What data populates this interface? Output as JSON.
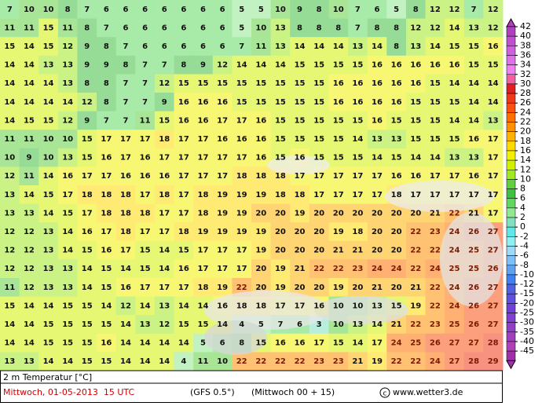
{
  "map": {
    "rows": [
      [
        7,
        10,
        10,
        8,
        7,
        6,
        6,
        6,
        6,
        6,
        6,
        6,
        5,
        5,
        10,
        9,
        8,
        10,
        7,
        6,
        5,
        8,
        12,
        12,
        7,
        12
      ],
      [
        11,
        11,
        15,
        11,
        8,
        7,
        6,
        6,
        6,
        6,
        6,
        6,
        5,
        10,
        13,
        8,
        8,
        8,
        7,
        8,
        8,
        12,
        12,
        14,
        13,
        12
      ],
      [
        15,
        14,
        15,
        12,
        9,
        8,
        7,
        6,
        6,
        6,
        6,
        6,
        7,
        11,
        13,
        14,
        14,
        14,
        13,
        14,
        8,
        13,
        14,
        15,
        15,
        16
      ],
      [
        14,
        14,
        13,
        13,
        9,
        9,
        8,
        7,
        7,
        8,
        9,
        12,
        14,
        14,
        14,
        15,
        15,
        15,
        15,
        16,
        16,
        16,
        16,
        16,
        15,
        15
      ],
      [
        14,
        14,
        14,
        13,
        8,
        8,
        7,
        7,
        12,
        15,
        15,
        15,
        15,
        15,
        15,
        15,
        15,
        16,
        16,
        16,
        16,
        16,
        15,
        14,
        14,
        14
      ],
      [
        14,
        14,
        14,
        14,
        12,
        8,
        7,
        7,
        9,
        16,
        16,
        16,
        15,
        15,
        15,
        15,
        15,
        16,
        16,
        16,
        16,
        15,
        15,
        15,
        14,
        14
      ],
      [
        14,
        15,
        15,
        12,
        9,
        7,
        7,
        11,
        15,
        16,
        16,
        17,
        17,
        16,
        15,
        15,
        15,
        15,
        15,
        16,
        15,
        15,
        15,
        14,
        14,
        13
      ],
      [
        11,
        11,
        10,
        10,
        15,
        17,
        17,
        17,
        18,
        17,
        17,
        16,
        16,
        16,
        15,
        15,
        15,
        15,
        14,
        13,
        13,
        15,
        15,
        15,
        16,
        17
      ],
      [
        10,
        9,
        10,
        13,
        15,
        16,
        17,
        16,
        17,
        17,
        17,
        17,
        17,
        16,
        15,
        16,
        15,
        15,
        15,
        14,
        15,
        14,
        14,
        13,
        13,
        17
      ],
      [
        12,
        11,
        14,
        16,
        17,
        17,
        16,
        16,
        16,
        17,
        17,
        17,
        18,
        18,
        18,
        17,
        17,
        17,
        17,
        17,
        16,
        16,
        17,
        17,
        16,
        17
      ],
      [
        13,
        14,
        15,
        17,
        18,
        18,
        18,
        17,
        18,
        17,
        18,
        19,
        19,
        19,
        18,
        18,
        17,
        17,
        17,
        17,
        18,
        17,
        17,
        17,
        17,
        17
      ],
      [
        13,
        13,
        14,
        15,
        17,
        18,
        18,
        18,
        17,
        17,
        18,
        19,
        19,
        20,
        20,
        19,
        20,
        20,
        20,
        20,
        20,
        20,
        21,
        22,
        21,
        17
      ],
      [
        12,
        12,
        13,
        14,
        16,
        17,
        18,
        17,
        17,
        18,
        19,
        19,
        19,
        19,
        20,
        20,
        20,
        19,
        18,
        20,
        20,
        22,
        23,
        24,
        26,
        27
      ],
      [
        12,
        12,
        13,
        14,
        15,
        16,
        17,
        15,
        14,
        15,
        17,
        17,
        17,
        19,
        20,
        20,
        20,
        21,
        21,
        20,
        20,
        22,
        22,
        24,
        25,
        27
      ],
      [
        12,
        12,
        13,
        13,
        14,
        15,
        14,
        15,
        14,
        16,
        17,
        17,
        17,
        20,
        19,
        21,
        22,
        22,
        23,
        24,
        24,
        22,
        24,
        25,
        25,
        26
      ],
      [
        11,
        12,
        13,
        13,
        14,
        15,
        16,
        17,
        17,
        17,
        18,
        19,
        22,
        20,
        19,
        20,
        20,
        19,
        20,
        21,
        20,
        21,
        22,
        24,
        26,
        27
      ],
      [
        15,
        14,
        14,
        15,
        15,
        14,
        12,
        14,
        13,
        14,
        14,
        16,
        18,
        18,
        17,
        17,
        16,
        10,
        10,
        13,
        15,
        19,
        22,
        24,
        26,
        27
      ],
      [
        14,
        14,
        15,
        15,
        15,
        15,
        14,
        13,
        12,
        15,
        15,
        14,
        4,
        5,
        7,
        6,
        3,
        10,
        13,
        14,
        21,
        22,
        23,
        25,
        26,
        27
      ],
      [
        14,
        14,
        15,
        15,
        15,
        16,
        14,
        14,
        14,
        14,
        5,
        6,
        8,
        15,
        16,
        16,
        17,
        15,
        14,
        17,
        24,
        25,
        26,
        27,
        27,
        28
      ],
      [
        13,
        13,
        14,
        14,
        15,
        15,
        14,
        14,
        14,
        4,
        11,
        10,
        22,
        22,
        22,
        22,
        23,
        23,
        21,
        19,
        22,
        22,
        24,
        27,
        28,
        29
      ]
    ]
  },
  "colorbar": {
    "labels": [
      42,
      40,
      38,
      36,
      34,
      32,
      30,
      28,
      26,
      24,
      22,
      20,
      18,
      16,
      14,
      12,
      10,
      8,
      6,
      4,
      2,
      0,
      -2,
      -4,
      -6,
      -8,
      -10,
      -12,
      -15,
      -20,
      -25,
      -30,
      -35,
      -40,
      -45
    ],
    "colors": [
      "#b040c0",
      "#c050d0",
      "#d060e0",
      "#e070e8",
      "#f080f0",
      "#f060a0",
      "#e02020",
      "#f03818",
      "#f85010",
      "#ff7000",
      "#ff9000",
      "#ffb000",
      "#ffd800",
      "#f0f000",
      "#d0f000",
      "#a0e820",
      "#60d040",
      "#40c040",
      "#60d860",
      "#90e890",
      "#80e0c0",
      "#60e8e8",
      "#90f0f0",
      "#a0d8f8",
      "#80c0f8",
      "#60a0f0",
      "#4080f0",
      "#5060e0",
      "#6050e0",
      "#7040d8",
      "#8040d0",
      "#9040c8",
      "#a040c0",
      "#b040b8",
      "#a030a8"
    ]
  },
  "footer": {
    "variable": "2 m Temperatur [°C]",
    "date": "Mittwoch, 01-05-2013  15 UTC",
    "model": "(GFS 0.5°)",
    "run": "(Mittwoch 00 + 15)",
    "source": "www.wetter3.de"
  }
}
